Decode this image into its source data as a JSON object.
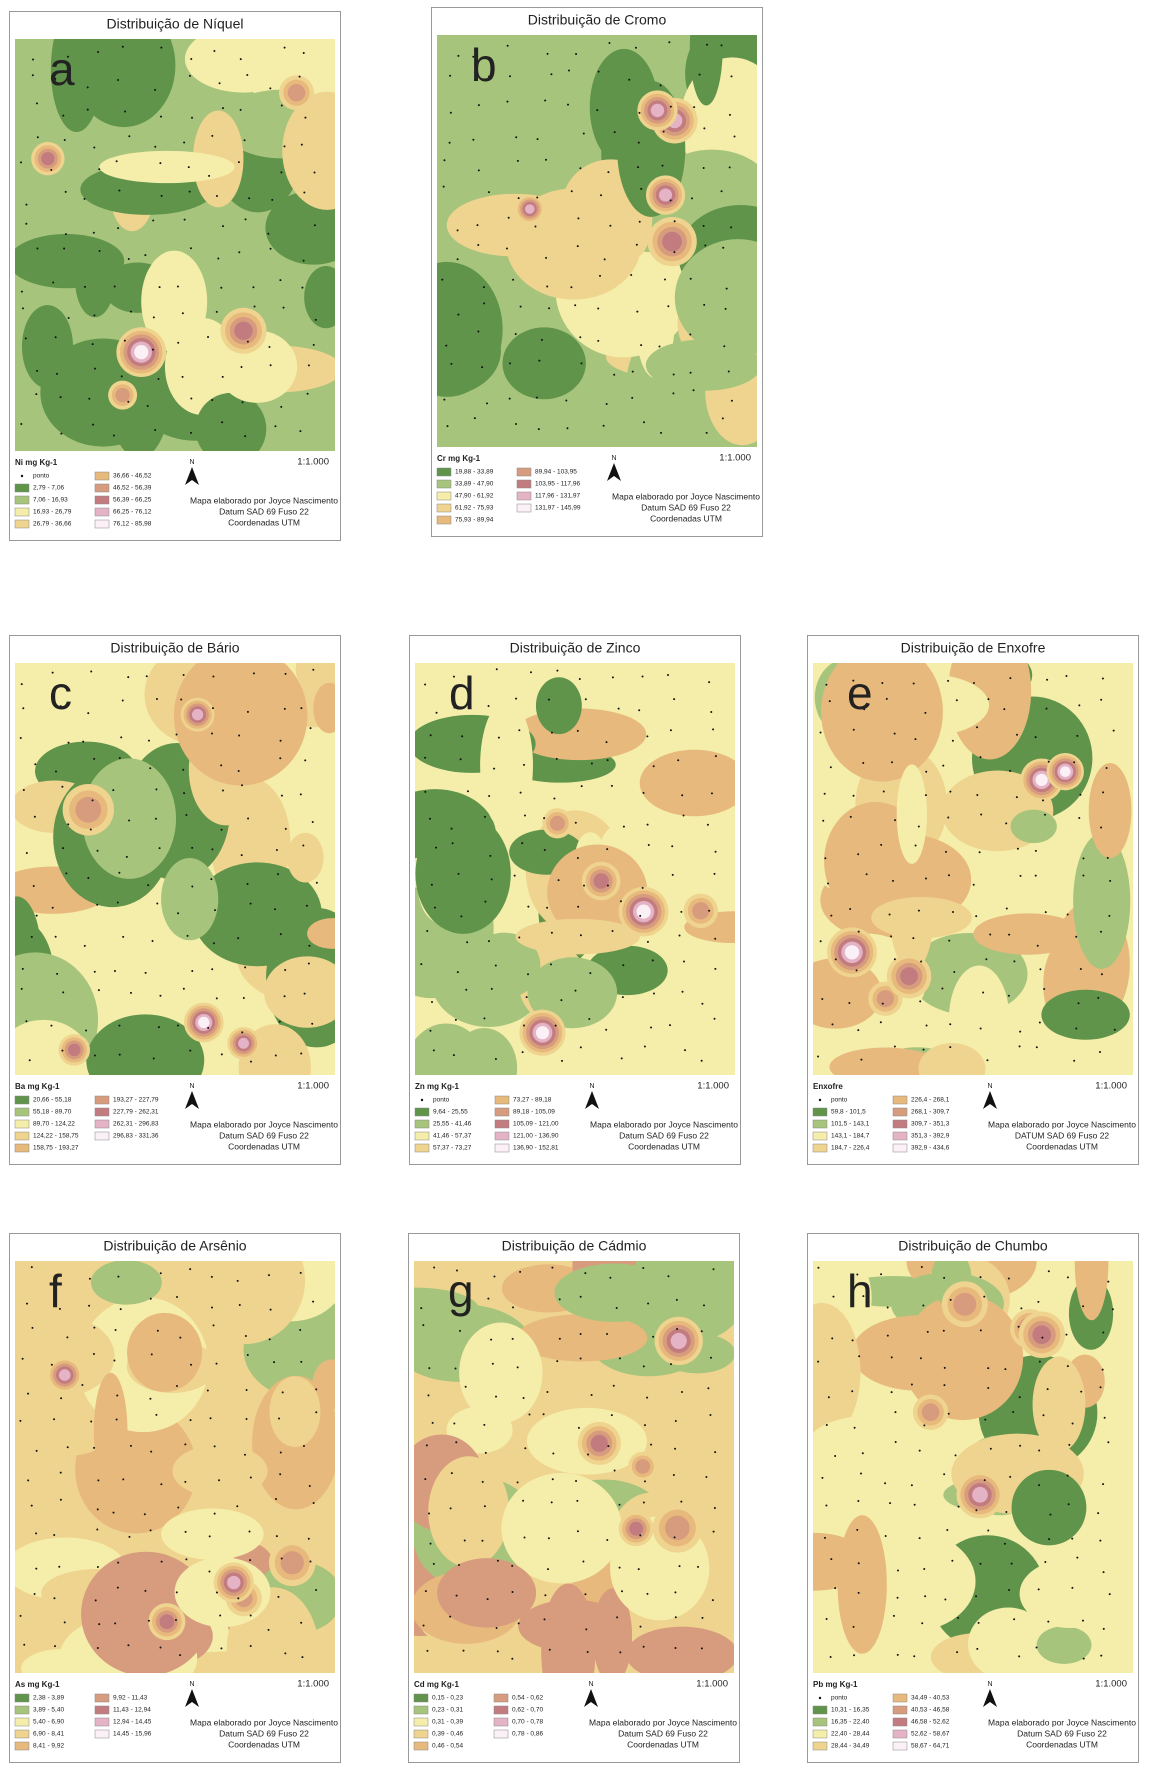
{
  "class_colors": [
    "#5f944a",
    "#a7c47c",
    "#f4eeaa",
    "#efd48f",
    "#e8b97c",
    "#d79c7d",
    "#c27c80",
    "#e4b3c6",
    "#fbf0f6"
  ],
  "panels": [
    {
      "title": "Distribuição de Níquel",
      "letter": "a",
      "legend_title": "Ni mg Kg-1",
      "point_label": "ponto",
      "classes": [
        "2,79 - 7,06",
        "7,06 - 16,93",
        "16,93 - 26,79",
        "26,79 - 36,66",
        "36,66 - 46,52",
        "46,52 - 56,39",
        "56,39 - 66,25",
        "66,25 - 76,12",
        "76,12 - 85,98"
      ],
      "north": "N",
      "scale": "1:1.000",
      "credits": [
        "Mapa elaborado por Joyce Nascimento",
        "Datum SAD 69 Fuso 22",
        "Coordenadas UTM"
      ]
    },
    {
      "title": "Distribuição de Cromo",
      "letter": "b",
      "legend_title": "Cr mg Kg-1",
      "classes": [
        "19,88 - 33,89",
        "33,89 - 47,90",
        "47,90 - 61,92",
        "61,92 - 75,93",
        "75,93 - 89,94",
        "89,94 - 103,95",
        "103,95 - 117,96",
        "117,96 - 131,97",
        "131,97 - 145,99"
      ],
      "north": "N",
      "scale": "1:1.000",
      "credits": [
        "Mapa elaborado por Joyce Nascimento",
        "Datum SAD 69 Fuso 22",
        "Coordenadas UTM"
      ]
    },
    {
      "title": "Distribuição de Bário",
      "letter": "c",
      "legend_title": "Ba mg Kg-1",
      "classes": [
        "20,66 - 55,18",
        "55,18 - 89,70",
        "89,70 - 124,22",
        "124,22 - 158,75",
        "158,75 - 193,27",
        "193,27 - 227,79",
        "227,79 - 262,31",
        "262,31 - 296,83",
        "296,83 - 331,36"
      ],
      "north": "N",
      "scale": "1:1.000",
      "credits": [
        "Mapa elaborado por Joyce Nascimento",
        "Datum SAD 69 Fuso 22",
        "Coordenadas UTM"
      ]
    },
    {
      "title": "Distribuição de Zinco",
      "letter": "d",
      "legend_title": "Zn mg Kg-1",
      "point_label": "ponto",
      "classes": [
        "9,64 - 25,55",
        "25,55 - 41,46",
        "41,46 - 57,37",
        "57,37 - 73,27",
        "73,27 - 89,18",
        "89,18 - 105,09",
        "105,09 - 121,00",
        "121,00 - 136,90",
        "136,90 - 152,81"
      ],
      "north": "N",
      "scale": "1:1.000",
      "credits": [
        "Mapa elaborado por Joyce Nascimento",
        "Datum SAD 69 Fuso 22",
        "Coordenadas UTM"
      ]
    },
    {
      "title": "Distribuição de Enxofre",
      "letter": "e",
      "legend_title": "Enxofre",
      "point_label": "ponto",
      "classes": [
        "59,8 - 101,5",
        "101,5 - 143,1",
        "143,1 - 184,7",
        "184,7 - 226,4",
        "226,4 - 268,1",
        "268,1 - 309,7",
        "309,7 - 351,3",
        "351,3 - 392,9",
        "392,9 - 434,6"
      ],
      "north": "N",
      "scale": "1:1.000",
      "credits": [
        "Mapa elaborado por Joyce Nascimento",
        "DATUM SAD 69 Fuso 22",
        "Coordenadas UTM"
      ]
    },
    {
      "title": "Distribuição de Arsênio",
      "letter": "f",
      "legend_title": "As mg Kg-1",
      "classes": [
        "2,38 - 3,89",
        "3,89 - 5,40",
        "5,40 - 6,90",
        "6,90 - 8,41",
        "8,41 - 9,92",
        "9,92 - 11,43",
        "11,43 - 12,94",
        "12,94 - 14,45",
        "14,45 - 15,96"
      ],
      "north": "N",
      "scale": "1:1.000",
      "credits": [
        "Mapa elaborado por Joyce Nascimento",
        "Datum SAD 69 Fuso 22",
        "Coordenadas UTM"
      ]
    },
    {
      "title": "Distribuição de Cádmio",
      "letter": "g",
      "legend_title": "Cd mg Kg-1",
      "classes": [
        "0,15 - 0,23",
        "0,23 - 0,31",
        "0,31 - 0,39",
        "0,39 - 0,46",
        "0,46 - 0,54",
        "0,54 - 0,62",
        "0,62 - 0,70",
        "0,70 - 0,78",
        "0,78 - 0,86"
      ],
      "north": "N",
      "scale": "1:1.000",
      "credits": [
        "Mapa elaborado por Joyce Nascimento",
        "Datum SAD 69 Fuso 22",
        "Coordenadas UTM"
      ]
    },
    {
      "title": "Distribuição de Chumbo",
      "letter": "h",
      "legend_title": "Pb mg Kg-1",
      "point_label": "ponto",
      "classes": [
        "10,31 - 16,35",
        "16,35 - 22,40",
        "22,40 - 28,44",
        "28,44 - 34,49",
        "34,49 - 40,53",
        "40,53 - 46,58",
        "46,58 - 52,62",
        "52,62 - 58,67",
        "58,67 - 64,71"
      ],
      "north": "N",
      "scale": "1:1.000",
      "credits": [
        "Mapa elaborado por Joyce Nascimento",
        "Datum SAD 69 Fuso 22",
        "Coordenadas UTM"
      ]
    }
  ]
}
